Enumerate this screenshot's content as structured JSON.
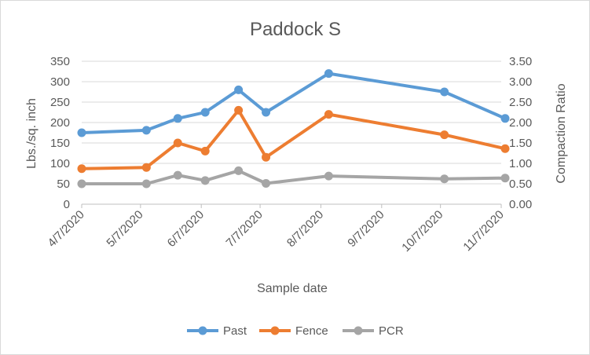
{
  "chart_data": {
    "type": "line",
    "title": "Paddock S",
    "xlabel": "Sample date",
    "ylabel": "Lbs./sq. inch",
    "y2label": "Compaction Ratio",
    "x_ticks": [
      "4/7/2020",
      "5/7/2020",
      "6/7/2020",
      "7/7/2020",
      "8/7/2020",
      "9/7/2020",
      "10/7/2020",
      "11/7/2020"
    ],
    "x_range": [
      "4/7/2020",
      "11/7/2020"
    ],
    "y_ticks": [
      "0",
      "50",
      "100",
      "150",
      "200",
      "250",
      "300",
      "350"
    ],
    "y2_ticks": [
      "0.00",
      "0.50",
      "1.00",
      "1.50",
      "2.00",
      "2.50",
      "3.00",
      "3.50"
    ],
    "ylim": [
      0,
      350
    ],
    "y2lim": [
      0,
      3.5
    ],
    "grid": true,
    "legend": "bottom",
    "series": [
      {
        "name": "Past",
        "axis": "left",
        "color": "#5b9bd5",
        "points": [
          {
            "x": "4/7/2020",
            "y": 175
          },
          {
            "x": "5/10/2020",
            "y": 181
          },
          {
            "x": "5/26/2020",
            "y": 210
          },
          {
            "x": "6/9/2020",
            "y": 225
          },
          {
            "x": "6/26/2020",
            "y": 280
          },
          {
            "x": "7/10/2020",
            "y": 225
          },
          {
            "x": "8/11/2020",
            "y": 320
          },
          {
            "x": "10/9/2020",
            "y": 275
          },
          {
            "x": "11/9/2020",
            "y": 210
          }
        ]
      },
      {
        "name": "Fence",
        "axis": "left",
        "color": "#ed7d31",
        "points": [
          {
            "x": "4/7/2020",
            "y": 87
          },
          {
            "x": "5/10/2020",
            "y": 90
          },
          {
            "x": "5/26/2020",
            "y": 150
          },
          {
            "x": "6/9/2020",
            "y": 130
          },
          {
            "x": "6/26/2020",
            "y": 230
          },
          {
            "x": "7/10/2020",
            "y": 115
          },
          {
            "x": "8/11/2020",
            "y": 220
          },
          {
            "x": "10/9/2020",
            "y": 170
          },
          {
            "x": "11/9/2020",
            "y": 136
          }
        ]
      },
      {
        "name": "PCR",
        "axis": "right",
        "color": "#a5a5a5",
        "points": [
          {
            "x": "4/7/2020",
            "y": 0.5
          },
          {
            "x": "5/10/2020",
            "y": 0.5
          },
          {
            "x": "5/26/2020",
            "y": 0.71
          },
          {
            "x": "6/9/2020",
            "y": 0.58
          },
          {
            "x": "6/26/2020",
            "y": 0.82
          },
          {
            "x": "7/10/2020",
            "y": 0.51
          },
          {
            "x": "8/11/2020",
            "y": 0.69
          },
          {
            "x": "10/9/2020",
            "y": 0.62
          },
          {
            "x": "11/9/2020",
            "y": 0.64
          }
        ]
      }
    ]
  }
}
